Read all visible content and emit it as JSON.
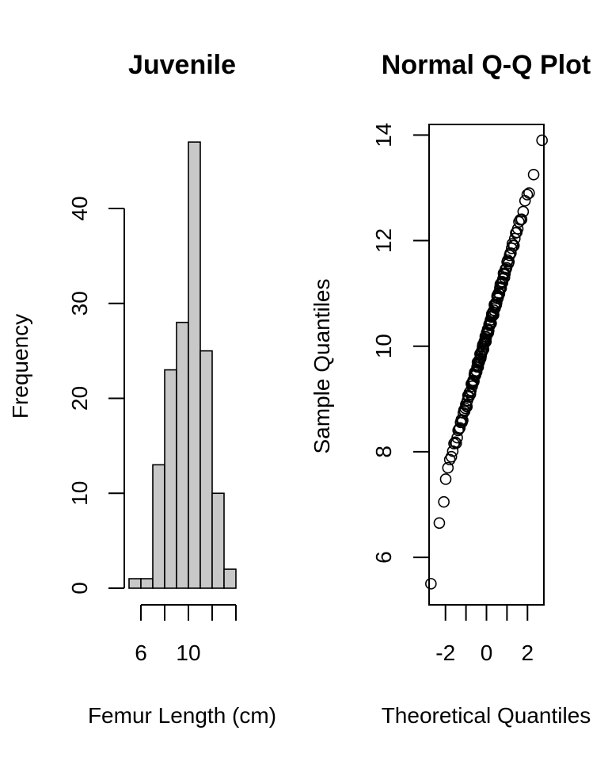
{
  "chart_data": [
    {
      "type": "bar",
      "subtype": "histogram",
      "title": "Juvenile",
      "xlabel": "Femur Length (cm)",
      "ylabel": "Frequency",
      "bin_edges": [
        5,
        6,
        7,
        8,
        9,
        10,
        11,
        12,
        13,
        14
      ],
      "values": [
        1,
        1,
        13,
        23,
        28,
        47,
        25,
        10,
        2
      ],
      "xticks": [
        6,
        8,
        10,
        12,
        14
      ],
      "xtick_labels": [
        "6",
        "",
        "10",
        "",
        ""
      ],
      "yticks": [
        0,
        10,
        20,
        30,
        40
      ],
      "yticks_labels": [
        "0",
        "10",
        "20",
        "30",
        "40"
      ],
      "grid": false,
      "color": "#c8c8c8"
    },
    {
      "type": "scatter",
      "title": "Normal Q-Q Plot",
      "xlabel": "Theoretical Quantiles",
      "ylabel": "Sample Quantiles",
      "xlim": [
        -2.8,
        2.8
      ],
      "ylim": [
        5.1,
        14.2
      ],
      "xticks": [
        -2,
        -1,
        0,
        1,
        2
      ],
      "xtick_labels": [
        "-2",
        "",
        "0",
        "",
        "2"
      ],
      "yticks": [
        6,
        8,
        10,
        12,
        14
      ],
      "ytick_labels": [
        "6",
        "8",
        "10",
        "12",
        "14"
      ],
      "n": 150,
      "mean": 10.2,
      "sd": 1.33,
      "extremes": [
        {
          "x": -2.71,
          "y": 5.5
        },
        {
          "x": -2.3,
          "y": 6.65
        },
        {
          "x": -2.08,
          "y": 7.05
        },
        {
          "x": 2.08,
          "y": 12.9
        },
        {
          "x": 2.3,
          "y": 13.25
        },
        {
          "x": 2.71,
          "y": 13.9
        }
      ],
      "grid": false
    }
  ]
}
